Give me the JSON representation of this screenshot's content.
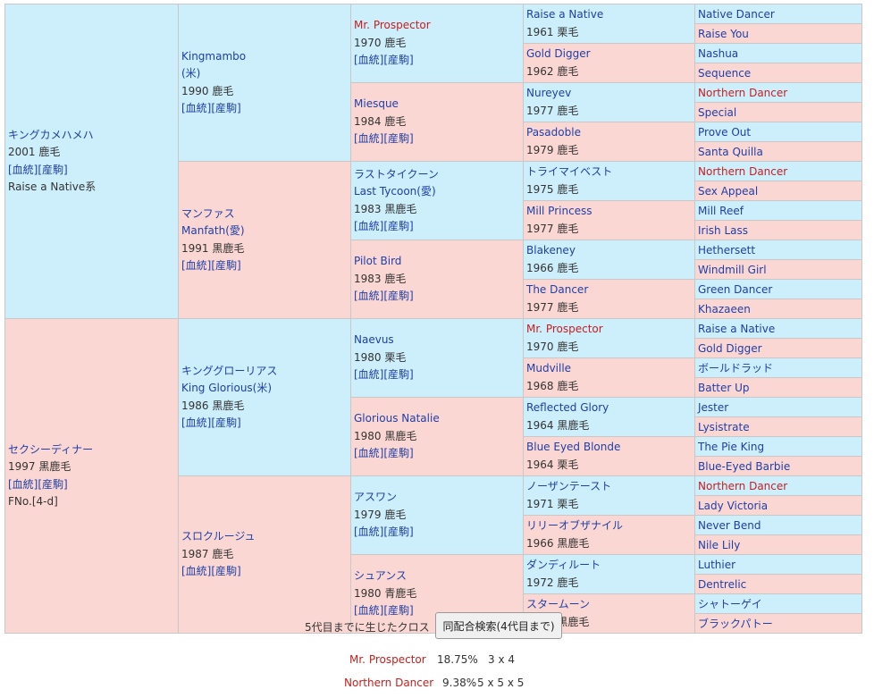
{
  "pedigree": {
    "gen1": [
      {
        "name": "キングカメハメハ",
        "lines": [
          "2001 鹿毛"
        ],
        "links": [
          "[血統]",
          "[産駒]"
        ],
        "extra": "Raise a Native系",
        "sex": "m"
      },
      {
        "name": "セクシーディナー",
        "lines": [
          "1997 黒鹿毛"
        ],
        "links": [
          "[血統]",
          "[産駒]"
        ],
        "extra": "FNo.[4-d]",
        "sex": "f"
      }
    ],
    "gen2": [
      {
        "name": "Kingmambo",
        "name2": "(米)",
        "lines": [
          "1990 鹿毛"
        ],
        "links": [
          "[血統]",
          "[産駒]"
        ],
        "sex": "m"
      },
      {
        "name": "マンファス",
        "name2": "Manfath(愛)",
        "lines": [
          "1991 黒鹿毛"
        ],
        "links": [
          "[血統]",
          "[産駒]"
        ],
        "sex": "f"
      },
      {
        "name": "キンググローリアス",
        "name2": "King Glorious(米)",
        "lines": [
          "1986 黒鹿毛"
        ],
        "links": [
          "[血統]",
          "[産駒]"
        ],
        "sex": "m"
      },
      {
        "name": "スロクルージュ",
        "lines": [
          "1987 鹿毛"
        ],
        "links": [
          "[血統]",
          "[産駒]"
        ],
        "sex": "f"
      }
    ],
    "gen3": [
      {
        "name": "Mr. Prospector",
        "red": true,
        "lines": [
          "1970 鹿毛"
        ],
        "links": [
          "[血統]",
          "[産駒]"
        ],
        "sex": "m"
      },
      {
        "name": "Miesque",
        "lines": [
          "1984 鹿毛"
        ],
        "links": [
          "[血統]",
          "[産駒]"
        ],
        "sex": "f"
      },
      {
        "name": "ラストタイクーン",
        "name2": "Last Tycoon(愛)",
        "lines": [
          "1983 黒鹿毛"
        ],
        "links": [
          "[血統]",
          "[産駒]"
        ],
        "sex": "m"
      },
      {
        "name": "Pilot Bird",
        "lines": [
          "1983 鹿毛"
        ],
        "links": [
          "[血統]",
          "[産駒]"
        ],
        "sex": "f"
      },
      {
        "name": "Naevus",
        "lines": [
          "1980 栗毛"
        ],
        "links": [
          "[血統]",
          "[産駒]"
        ],
        "sex": "m"
      },
      {
        "name": "Glorious Natalie",
        "lines": [
          "1980 黒鹿毛"
        ],
        "links": [
          "[血統]",
          "[産駒]"
        ],
        "sex": "f"
      },
      {
        "name": "アスワン",
        "lines": [
          "1979 鹿毛"
        ],
        "links": [
          "[血統]",
          "[産駒]"
        ],
        "sex": "m"
      },
      {
        "name": "シュアンス",
        "lines": [
          "1980 青鹿毛"
        ],
        "links": [
          "[血統]",
          "[産駒]"
        ],
        "sex": "f"
      }
    ],
    "gen4": [
      {
        "name": "Raise a Native",
        "year": "1961 栗毛",
        "sex": "m"
      },
      {
        "name": "Gold Digger",
        "year": "1962 鹿毛",
        "sex": "f"
      },
      {
        "name": "Nureyev",
        "year": "1977 鹿毛",
        "sex": "m"
      },
      {
        "name": "Pasadoble",
        "year": "1979 鹿毛",
        "sex": "f"
      },
      {
        "name": "トライマイベスト",
        "year": "1975 鹿毛",
        "sex": "m"
      },
      {
        "name": "Mill Princess",
        "year": "1977 鹿毛",
        "sex": "f"
      },
      {
        "name": "Blakeney",
        "year": "1966 鹿毛",
        "sex": "m"
      },
      {
        "name": "The Dancer",
        "year": "1977 鹿毛",
        "sex": "f"
      },
      {
        "name": "Mr. Prospector",
        "year": "1970 鹿毛",
        "sex": "m",
        "red": true
      },
      {
        "name": "Mudville",
        "year": "1968 鹿毛",
        "sex": "f"
      },
      {
        "name": "Reflected Glory",
        "year": "1964 黒鹿毛",
        "sex": "m"
      },
      {
        "name": "Blue Eyed Blonde",
        "year": "1964 栗毛",
        "sex": "f"
      },
      {
        "name": "ノーザンテースト",
        "year": "1971 栗毛",
        "sex": "m"
      },
      {
        "name": "リリーオブザナイル",
        "year": "1966 黒鹿毛",
        "sex": "f"
      },
      {
        "name": "ダンディルート",
        "year": "1972 鹿毛",
        "sex": "m"
      },
      {
        "name": "スタームーン",
        "year": "1976 黒鹿毛",
        "sex": "f"
      }
    ],
    "gen5": [
      {
        "name": "Native Dancer",
        "sex": "m"
      },
      {
        "name": "Raise You",
        "sex": "f"
      },
      {
        "name": "Nashua",
        "sex": "m"
      },
      {
        "name": "Sequence",
        "sex": "f"
      },
      {
        "name": "Northern Dancer",
        "sex": "m",
        "red": true
      },
      {
        "name": "Special",
        "sex": "f"
      },
      {
        "name": "Prove Out",
        "sex": "m"
      },
      {
        "name": "Santa Quilla",
        "sex": "f"
      },
      {
        "name": "Northern Dancer",
        "sex": "m",
        "red": true
      },
      {
        "name": "Sex Appeal",
        "sex": "f"
      },
      {
        "name": "Mill Reef",
        "sex": "m"
      },
      {
        "name": "Irish Lass",
        "sex": "f"
      },
      {
        "name": "Hethersett",
        "sex": "m"
      },
      {
        "name": "Windmill Girl",
        "sex": "f"
      },
      {
        "name": "Green Dancer",
        "sex": "m"
      },
      {
        "name": "Khazaeen",
        "sex": "f"
      },
      {
        "name": "Raise a Native",
        "sex": "m"
      },
      {
        "name": "Gold Digger",
        "sex": "f"
      },
      {
        "name": "ボールドラッド",
        "sex": "m"
      },
      {
        "name": "Batter Up",
        "sex": "f"
      },
      {
        "name": "Jester",
        "sex": "m"
      },
      {
        "name": "Lysistrate",
        "sex": "f"
      },
      {
        "name": "The Pie King",
        "sex": "m"
      },
      {
        "name": "Blue-Eyed Barbie",
        "sex": "f"
      },
      {
        "name": "Northern Dancer",
        "sex": "m",
        "red": true
      },
      {
        "name": "Lady Victoria",
        "sex": "f"
      },
      {
        "name": "Never Bend",
        "sex": "m"
      },
      {
        "name": "Nile Lily",
        "sex": "f"
      },
      {
        "name": "Luthier",
        "sex": "m"
      },
      {
        "name": "Dentrelic",
        "sex": "f"
      },
      {
        "name": "シャトーゲイ",
        "sex": "m"
      },
      {
        "name": "ブラックパトー",
        "sex": "f"
      }
    ]
  },
  "crosses": {
    "title": "5代目までに生じたクロス",
    "button_label": "同配合検索(4代目まで)",
    "rows": [
      {
        "name": "Mr. Prospector",
        "pct": "18.75%",
        "gen": "3 x 4"
      },
      {
        "name": "Northern Dancer",
        "pct": "9.38%",
        "gen": "5 x 5 x 5"
      }
    ]
  },
  "colors": {
    "male_bg": "#cdeefb",
    "female_bg": "#fbd7d3",
    "link": "#1f3fa8",
    "cross": "#c81e1e"
  }
}
